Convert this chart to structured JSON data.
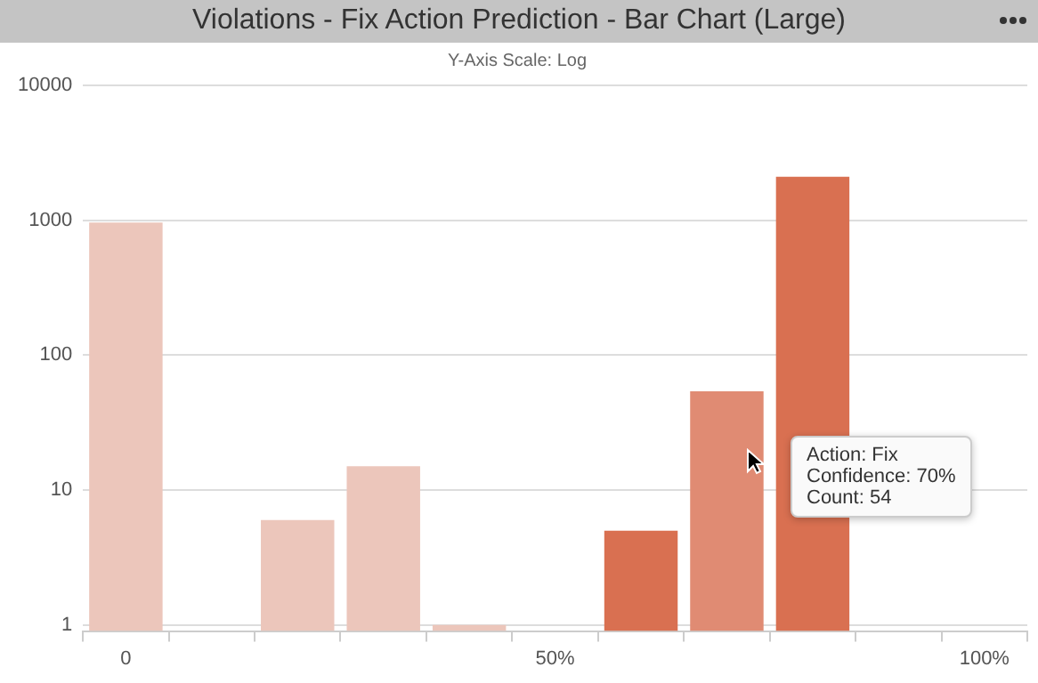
{
  "chart_data": {
    "type": "bar",
    "title": "Violations - Fix Action Prediction - Bar Chart (Large)",
    "subtitle": "Y-Axis Scale: Log",
    "categories": [
      "0",
      null,
      null,
      null,
      null,
      "50%",
      null,
      null,
      null,
      null,
      "100%"
    ],
    "values": [
      960,
      null,
      6,
      15,
      1,
      null,
      5,
      54,
      2100,
      null,
      null
    ],
    "colors": [
      "#ecc6bb",
      "#ecc6bb",
      "#ecc6bb",
      "#ecc6bb",
      "#ecc6bb",
      "#ecc6bb",
      "#d97051",
      "#e08b73",
      "#d97051",
      "#d97051",
      "#d97051"
    ],
    "log": true,
    "ylim": [
      0.9,
      10000
    ],
    "yticks": [
      1,
      10,
      100,
      1000,
      10000
    ],
    "grid": "y",
    "annotations": [
      "Action: Fix\nConfidence: 70%\nCount: 54"
    ]
  }
}
